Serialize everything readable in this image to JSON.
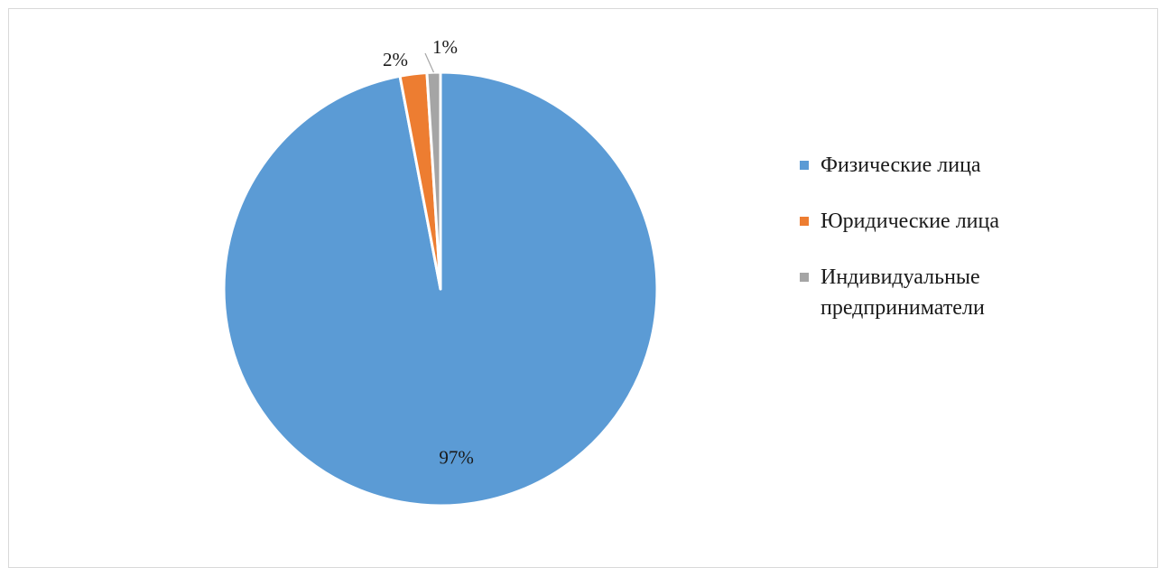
{
  "chart_data": {
    "type": "pie",
    "title": "",
    "series": [
      {
        "name": "",
        "categories": [
          "Физические лица",
          "Юридические лица",
          "Индивидуальные предприниматели"
        ],
        "values": [
          97,
          2,
          1
        ],
        "labels": [
          "97%",
          "2%",
          "1%"
        ],
        "colors": [
          "#5b9bd5",
          "#ed7d31",
          "#a5a5a5"
        ]
      }
    ],
    "legend": {
      "position": "right",
      "items": [
        {
          "label": "Физические лица",
          "color": "#5b9bd5"
        },
        {
          "label": "Юридические лица",
          "color": "#ed7d31"
        },
        {
          "label": "Индивидуальные предприниматели",
          "color": "#a5a5a5"
        }
      ]
    },
    "start_angle": "top",
    "direction": "clockwise"
  }
}
